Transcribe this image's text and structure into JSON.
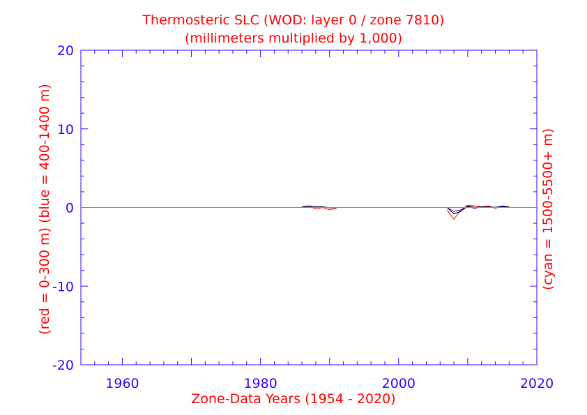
{
  "chart_data": {
    "type": "line",
    "title": "Thermosteric SLC (WOD: layer 0 / zone 7810)",
    "subtitle": "(millimeters multiplied by 1,000)",
    "xlabel": "Zone-Data Years (1954 - 2020)",
    "ylabel_left": "(red = 0-300 m)  (blue = 400-1400 m)",
    "ylabel_right": "(cyan = 1500-5500+ m)",
    "xlim": [
      1954,
      2020
    ],
    "ylim": [
      -20,
      20
    ],
    "x_ticks": [
      "1960",
      "1980",
      "2000",
      "2020"
    ],
    "y_ticks": [
      "20",
      "10",
      "0",
      "-10",
      "-20"
    ],
    "colors": {
      "axis": "#3a00ff",
      "text": "#ff0000",
      "red": "#ff0000",
      "blue": "#0000ff",
      "black": "#000000",
      "cyan": "#00cccc"
    },
    "series": [
      {
        "name": "red = 0-300 m",
        "color": "#ff0000",
        "segments": [
          [
            [
              1986,
              0.1
            ],
            [
              1987,
              0.2
            ],
            [
              1988,
              -0.2
            ],
            [
              1989,
              0.0
            ],
            [
              1990,
              -0.3
            ],
            [
              1991,
              -0.1
            ]
          ],
          [
            [
              2007,
              -0.3
            ],
            [
              2008,
              -1.5
            ],
            [
              2009,
              -0.3
            ],
            [
              2010,
              0.3
            ],
            [
              2011,
              0.2
            ],
            [
              2012,
              0.1
            ],
            [
              2013,
              0.2
            ],
            [
              2014,
              -0.1
            ],
            [
              2015,
              0.2
            ],
            [
              2016,
              0.1
            ]
          ]
        ]
      },
      {
        "name": "blue = 400-1400 m",
        "color": "#0000ff",
        "segments": [
          [
            [
              1986,
              0.0
            ],
            [
              1987,
              0.15
            ],
            [
              1988,
              0.1
            ],
            [
              1989,
              0.05
            ],
            [
              1990,
              0.0
            ],
            [
              1991,
              -0.05
            ]
          ],
          [
            [
              2007,
              0.0
            ],
            [
              2008,
              -0.5
            ],
            [
              2009,
              -0.3
            ],
            [
              2010,
              0.1
            ],
            [
              2011,
              -0.1
            ],
            [
              2012,
              0.1
            ],
            [
              2013,
              0.0
            ],
            [
              2014,
              0.05
            ],
            [
              2015,
              0.1
            ],
            [
              2016,
              0.0
            ]
          ]
        ]
      },
      {
        "name": "",
        "color": "#000000",
        "segments": [
          [
            [
              1986,
              0.05
            ],
            [
              1987,
              0.2
            ],
            [
              1988,
              0.1
            ],
            [
              1989,
              0.1
            ],
            [
              1990,
              -0.05
            ],
            [
              1991,
              0.0
            ]
          ],
          [
            [
              2007,
              0.0
            ],
            [
              2008,
              -0.8
            ],
            [
              2009,
              -0.5
            ],
            [
              2010,
              0.2
            ],
            [
              2011,
              0.0
            ],
            [
              2012,
              0.1
            ],
            [
              2013,
              0.1
            ],
            [
              2014,
              0.0
            ],
            [
              2015,
              0.2
            ],
            [
              2016,
              0.05
            ]
          ]
        ]
      },
      {
        "name": "cyan = 1500-5500+ m",
        "color": "#00cccc",
        "segments": [
          [
            [
              1954,
              0.0
            ],
            [
              2020,
              0.0
            ]
          ]
        ]
      }
    ]
  }
}
